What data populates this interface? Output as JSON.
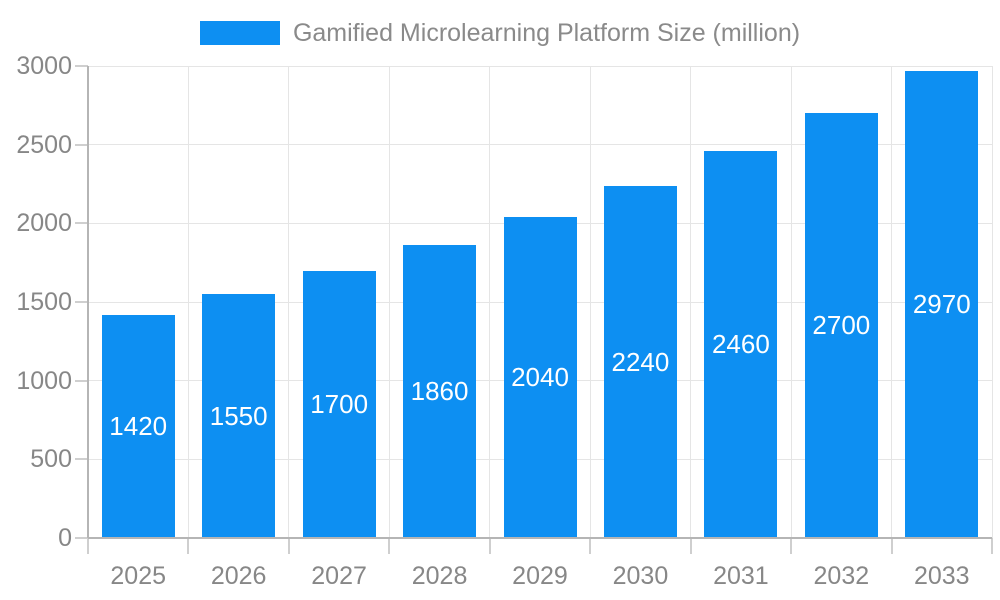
{
  "chart_data": {
    "type": "bar",
    "title": "Gamified Microlearning Platform Size (million)",
    "legend": {
      "label": "Gamified Microlearning Platform Size (million)",
      "position": "top"
    },
    "categories": [
      "2025",
      "2026",
      "2027",
      "2028",
      "2029",
      "2030",
      "2031",
      "2032",
      "2033"
    ],
    "values": [
      1420,
      1550,
      1700,
      1860,
      2040,
      2240,
      2460,
      2700,
      2970
    ],
    "xlabel": "",
    "ylabel": "",
    "ylim": [
      0,
      3000
    ],
    "y_ticks": [
      0,
      500,
      1000,
      1500,
      2000,
      2500,
      3000
    ],
    "grid": true,
    "value_label_placement": "inside-center",
    "colors": {
      "bar": "#0D8FF2",
      "value_label": "#FFFFFF",
      "axis_text": "#878787",
      "legend_text": "#8A8A8A",
      "grid_line": "#E5E5E5",
      "axis_line": "#B5B5B5",
      "tick_line": "#CFCFCF",
      "background": "#FFFFFF"
    }
  }
}
